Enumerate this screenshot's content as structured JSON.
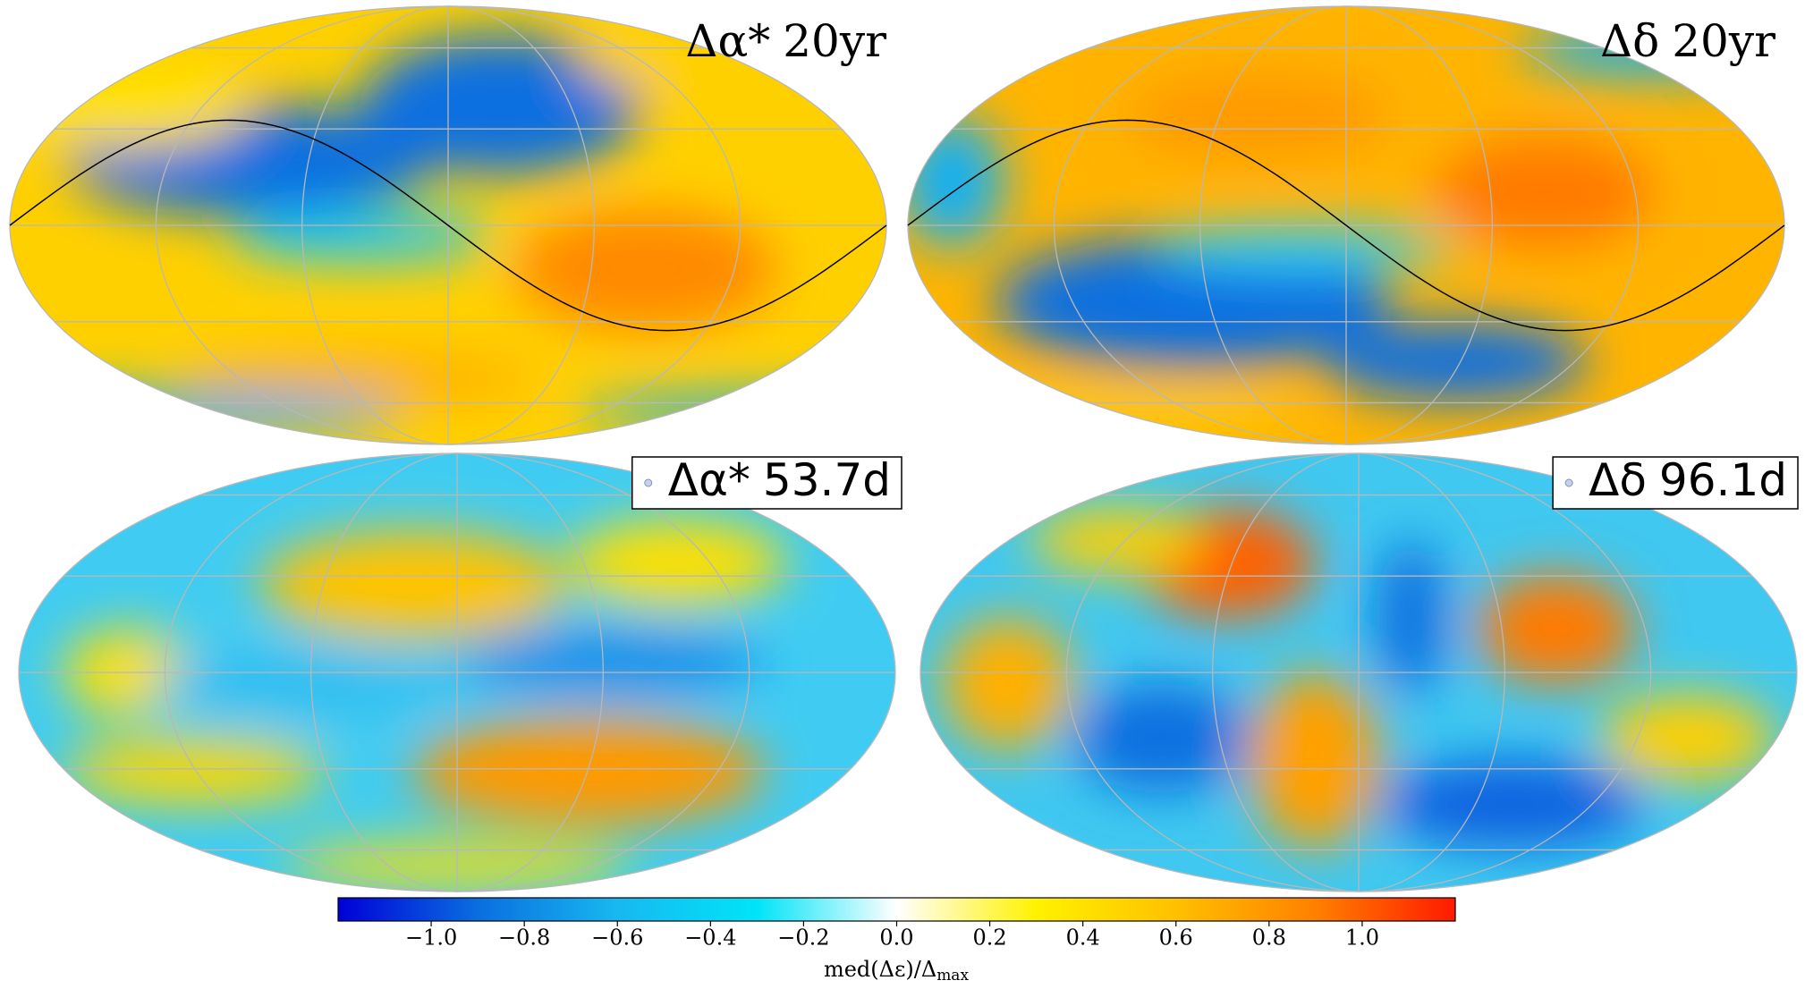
{
  "chart_data": {
    "type": "skymap",
    "panels": [
      {
        "quantity": "Δα*",
        "span": "20yr"
      },
      {
        "quantity": "Δδ",
        "span": "20yr"
      },
      {
        "quantity": "Δα*",
        "span": "53.7d"
      },
      {
        "quantity": "Δδ",
        "span": "96.1d"
      }
    ],
    "colorbar": {
      "label": "med(Δε)/Δ",
      "label_sub": "max",
      "clim": [
        -1.2,
        1.2
      ],
      "ticks": [
        {
          "value": -1.0,
          "label": "−1.0"
        },
        {
          "value": -0.8,
          "label": "−0.8"
        },
        {
          "value": -0.6,
          "label": "−0.6"
        },
        {
          "value": -0.4,
          "label": "−0.4"
        },
        {
          "value": -0.2,
          "label": "−0.2"
        },
        {
          "value": 0.0,
          "label": "0.0"
        },
        0.2,
        0.4,
        0.6,
        0.8,
        {
          "value": 1.0,
          "label": "1.0"
        }
      ],
      "colormap": [
        "#0000d8",
        "#0a6ee0",
        "#18b8f0",
        "#00e4f8",
        "#ffffff",
        "#fff200",
        "#ffc000",
        "#ff8000",
        "#ff1a00"
      ]
    }
  }
}
